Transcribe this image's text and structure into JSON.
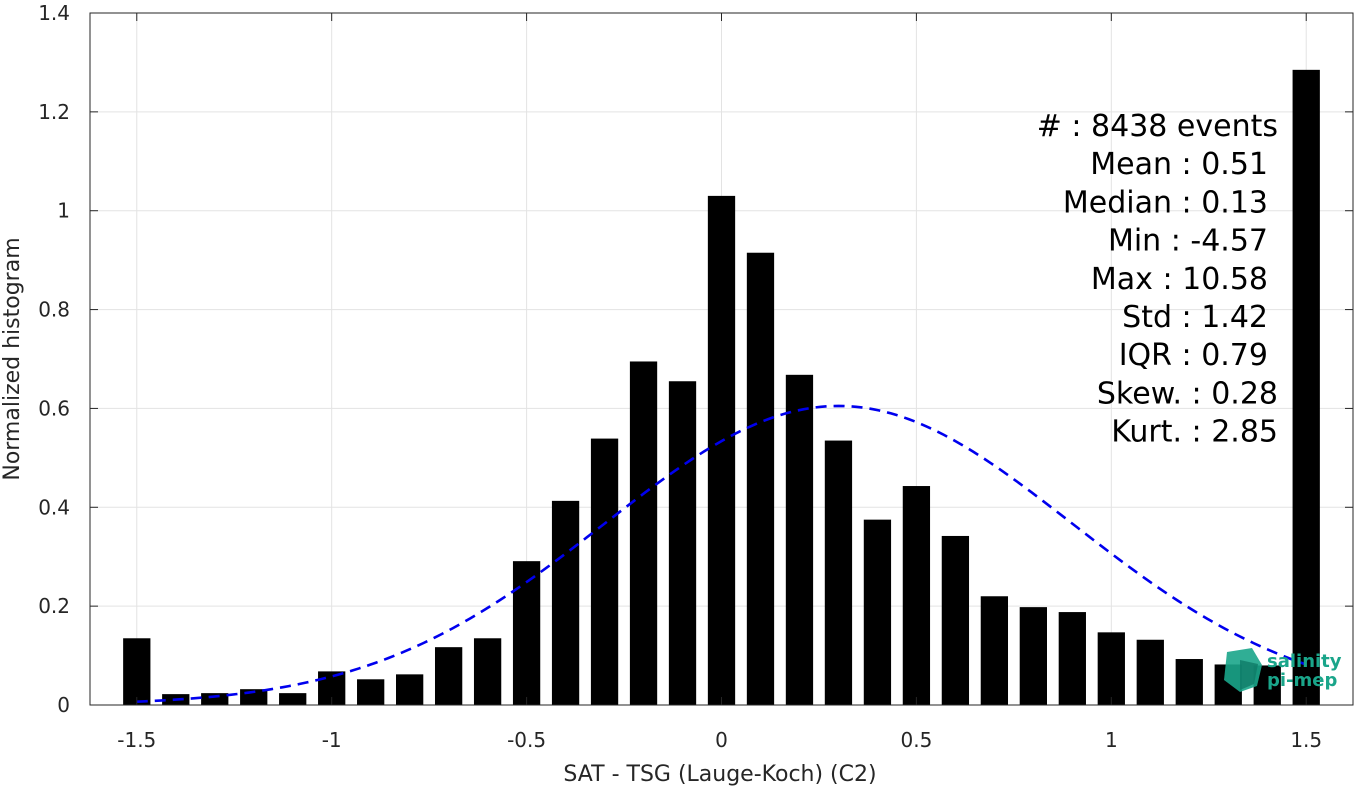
{
  "chart_data": {
    "type": "bar",
    "xlabel": "SAT - TSG (Lauge-Koch) (C2)",
    "ylabel": "Normalized histogram",
    "xlim": [
      -1.62,
      1.62
    ],
    "ylim": [
      0,
      1.4
    ],
    "grid": true,
    "x_ticks": [
      -1.5,
      -1,
      -0.5,
      0,
      0.5,
      1,
      1.5
    ],
    "x_tick_labels": [
      "-1.5",
      "-1",
      "-0.5",
      "0",
      "0.5",
      "1",
      "1.5"
    ],
    "y_ticks": [
      0,
      0.2,
      0.4,
      0.6,
      0.8,
      1,
      1.2,
      1.4
    ],
    "y_tick_labels": [
      "0",
      "0.2",
      "0.4",
      "0.6",
      "0.8",
      "1",
      "1.2",
      "1.4"
    ],
    "bar_width": 0.07,
    "bars": {
      "x": [
        -1.5,
        -1.4,
        -1.3,
        -1.2,
        -1.1,
        -1.0,
        -0.9,
        -0.8,
        -0.7,
        -0.6,
        -0.5,
        -0.4,
        -0.3,
        -0.2,
        -0.1,
        0.0,
        0.1,
        0.2,
        0.3,
        0.4,
        0.5,
        0.6,
        0.7,
        0.8,
        0.9,
        1.0,
        1.1,
        1.2,
        1.3,
        1.4,
        1.5
      ],
      "values": [
        0.135,
        0.022,
        0.024,
        0.032,
        0.024,
        0.068,
        0.052,
        0.062,
        0.117,
        0.135,
        0.291,
        0.413,
        0.539,
        0.695,
        0.655,
        1.03,
        0.915,
        0.668,
        0.535,
        0.375,
        0.443,
        0.342,
        0.22,
        0.198,
        0.188,
        0.147,
        0.132,
        0.093,
        0.082,
        0.08,
        1.285
      ],
      "color": "#000000"
    },
    "fit_curve": {
      "style": "dashed",
      "color": "#0000ee",
      "distribution": "normal",
      "x_range": [
        -1.5,
        1.5
      ],
      "peak_x": 0.3,
      "peak_y": 0.605,
      "sigma": 0.6
    },
    "stats": [
      "#  : 8438 events",
      "Mean : 0.51",
      "Median : 0.13",
      "Min : -4.57",
      "Max : 10.58",
      "Std : 1.42",
      "IQR : 0.79",
      "Skew. : 0.28",
      "Kurt. : 2.85"
    ]
  },
  "logo": {
    "line1": "salinity",
    "line2": "pi-mep",
    "color": "#1aa58a"
  }
}
